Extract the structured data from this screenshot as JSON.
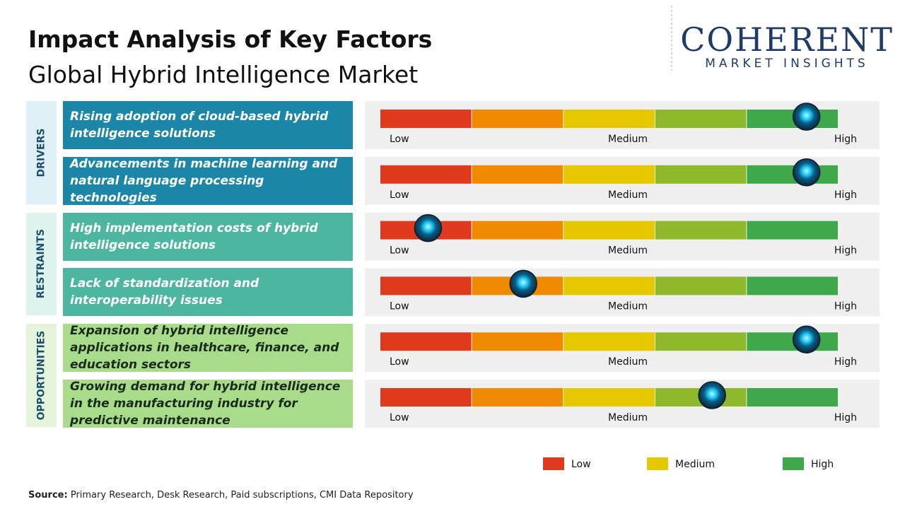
{
  "header": {
    "title": "Impact Analysis of Key Factors",
    "subtitle": "Global Hybrid Intelligence Market"
  },
  "logo": {
    "name": "COHERENT",
    "tagline": "MARKET INSIGHTS"
  },
  "scale": {
    "segments": [
      "#e03a1e",
      "#f08a00",
      "#e6c800",
      "#8fb82a",
      "#3ea84a"
    ],
    "labels": [
      "Low",
      "Medium",
      "High"
    ]
  },
  "groups": [
    {
      "name": "DRIVERS",
      "color": "#1c86a8",
      "text_color": "#ffffff",
      "label_bg": "#dff0f7",
      "label_color": "#1a4f6e",
      "factors": [
        {
          "text": "Rising adoption of cloud-based hybrid intelligence solutions",
          "impact": 4.65
        },
        {
          "text": "Advancements in machine learning and natural language processing technologies",
          "impact": 4.65
        }
      ]
    },
    {
      "name": "RESTRAINTS",
      "color": "#4db6a0",
      "text_color": "#ffffff",
      "label_bg": "#dff3ee",
      "label_color": "#1a4f6e",
      "factors": [
        {
          "text": "High implementation costs of hybrid intelligence solutions",
          "impact": 0.52
        },
        {
          "text": "Lack of standardization and interoperability issues",
          "impact": 1.56
        }
      ]
    },
    {
      "name": "OPPORTUNITIES",
      "color": "#a8dc8a",
      "text_color": "#1a2a1a",
      "label_bg": "#e5f5dc",
      "label_color": "#1a4f6e",
      "factors": [
        {
          "text": "Expansion of hybrid intelligence applications in healthcare, finance, and education sectors",
          "impact": 4.65
        },
        {
          "text": "Growing demand for hybrid intelligence in the manufacturing industry for predictive maintenance",
          "impact": 3.62
        }
      ]
    }
  ],
  "legend": [
    {
      "label": "Low",
      "color": "#e03a1e"
    },
    {
      "label": "Medium",
      "color": "#e6c800"
    },
    {
      "label": "High",
      "color": "#3ea84a"
    }
  ],
  "source": {
    "label": "Source:",
    "text": "Primary Research, Desk Research, Paid subscriptions, CMI Data Repository"
  }
}
